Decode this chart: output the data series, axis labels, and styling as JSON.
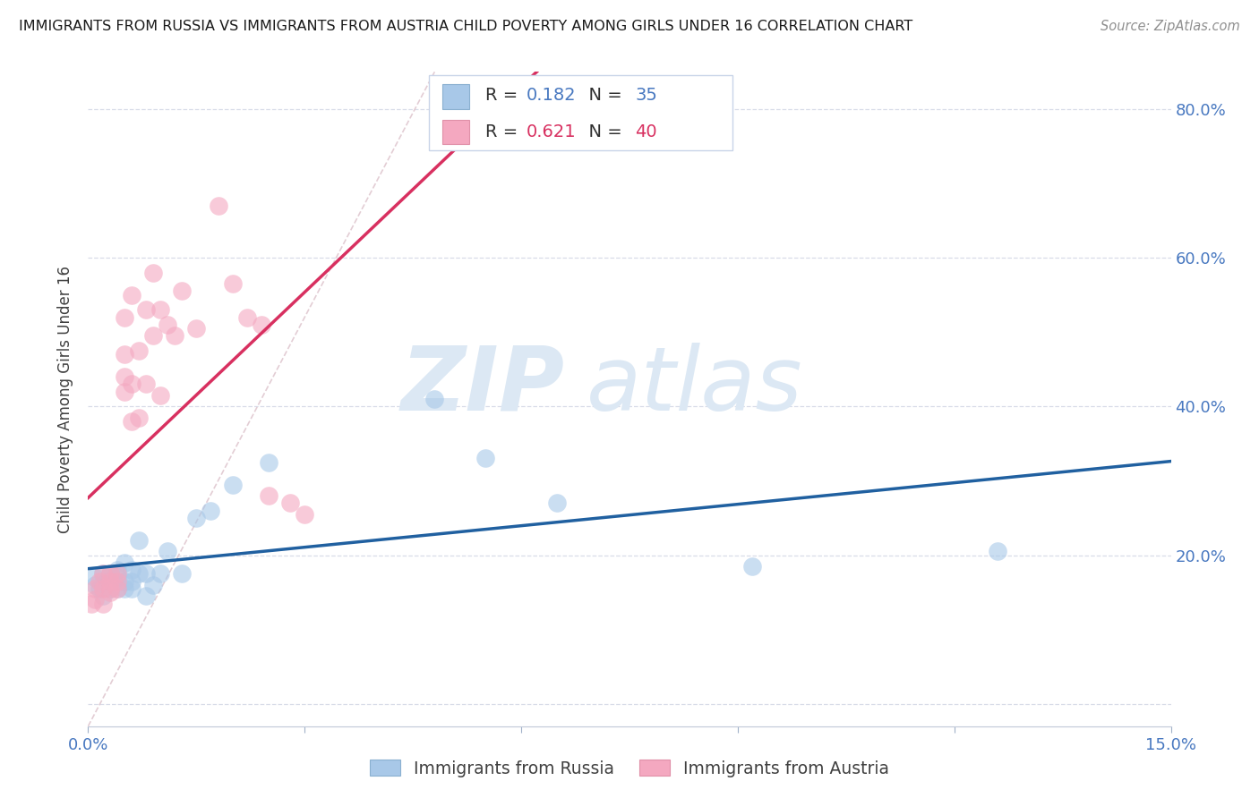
{
  "title": "IMMIGRANTS FROM RUSSIA VS IMMIGRANTS FROM AUSTRIA CHILD POVERTY AMONG GIRLS UNDER 16 CORRELATION CHART",
  "source": "Source: ZipAtlas.com",
  "ylabel": "Child Poverty Among Girls Under 16",
  "xlim": [
    0.0,
    0.15
  ],
  "ylim": [
    -0.03,
    0.85
  ],
  "xticks": [
    0.0,
    0.03,
    0.06,
    0.09,
    0.12,
    0.15
  ],
  "xticklabels": [
    "0.0%",
    "",
    "",
    "",
    "",
    "15.0%"
  ],
  "yticks_right": [
    0.0,
    0.2,
    0.4,
    0.6,
    0.8
  ],
  "ytick_right_labels": [
    "",
    "20.0%",
    "40.0%",
    "60.0%",
    "80.0%"
  ],
  "russia_R": 0.182,
  "russia_N": 35,
  "austria_R": 0.621,
  "austria_N": 40,
  "russia_color": "#a8c8e8",
  "austria_color": "#f4a8c0",
  "russia_line_color": "#2060a0",
  "austria_line_color": "#d83060",
  "diag_color": "#e0c8d0",
  "grid_color": "#d8dce8",
  "background_color": "#ffffff",
  "watermark_zip": "ZIP",
  "watermark_atlas": "atlas",
  "legend_box_color": "#f0f4fc",
  "legend_border_color": "#c8d4e8",
  "russia_x": [
    0.0008,
    0.001,
    0.0015,
    0.002,
    0.002,
    0.0025,
    0.003,
    0.003,
    0.0035,
    0.004,
    0.004,
    0.004,
    0.005,
    0.005,
    0.005,
    0.006,
    0.006,
    0.006,
    0.007,
    0.007,
    0.008,
    0.008,
    0.009,
    0.01,
    0.011,
    0.013,
    0.015,
    0.017,
    0.02,
    0.025,
    0.048,
    0.055,
    0.065,
    0.092,
    0.126
  ],
  "russia_y": [
    0.17,
    0.16,
    0.155,
    0.175,
    0.145,
    0.165,
    0.155,
    0.175,
    0.165,
    0.17,
    0.155,
    0.18,
    0.155,
    0.165,
    0.19,
    0.18,
    0.155,
    0.165,
    0.22,
    0.175,
    0.175,
    0.145,
    0.16,
    0.175,
    0.205,
    0.175,
    0.25,
    0.26,
    0.295,
    0.325,
    0.41,
    0.33,
    0.27,
    0.185,
    0.205
  ],
  "austria_x": [
    0.0005,
    0.001,
    0.001,
    0.0015,
    0.002,
    0.002,
    0.002,
    0.003,
    0.003,
    0.003,
    0.003,
    0.004,
    0.004,
    0.004,
    0.005,
    0.005,
    0.005,
    0.005,
    0.006,
    0.006,
    0.006,
    0.007,
    0.007,
    0.008,
    0.008,
    0.009,
    0.009,
    0.01,
    0.01,
    0.011,
    0.012,
    0.013,
    0.015,
    0.018,
    0.02,
    0.022,
    0.024,
    0.025,
    0.028,
    0.03
  ],
  "austria_y": [
    0.135,
    0.155,
    0.14,
    0.165,
    0.155,
    0.135,
    0.175,
    0.15,
    0.165,
    0.155,
    0.175,
    0.155,
    0.165,
    0.175,
    0.42,
    0.44,
    0.47,
    0.52,
    0.38,
    0.43,
    0.55,
    0.385,
    0.475,
    0.43,
    0.53,
    0.495,
    0.58,
    0.415,
    0.53,
    0.51,
    0.495,
    0.555,
    0.505,
    0.67,
    0.565,
    0.52,
    0.51,
    0.28,
    0.27,
    0.255
  ]
}
